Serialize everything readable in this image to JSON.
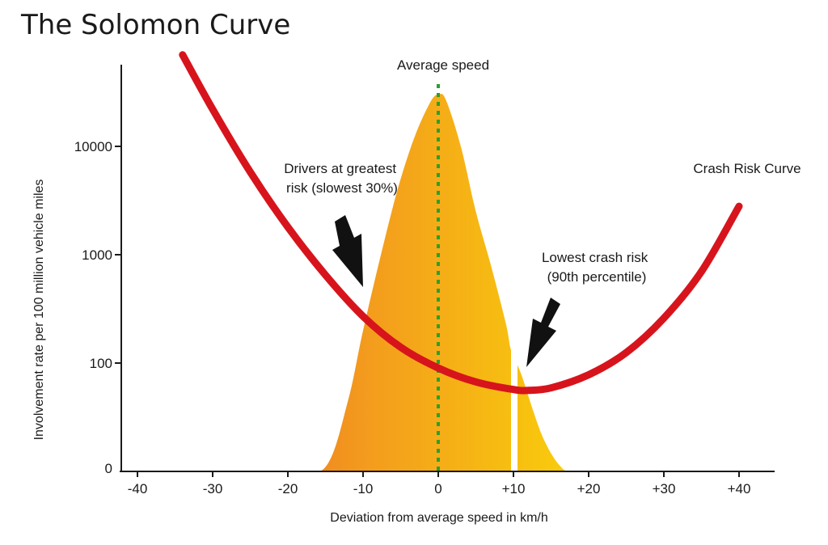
{
  "chart_data": {
    "type": "area",
    "title": "The Solomon Curve",
    "xlabel": "Deviation from average speed in km/h",
    "ylabel": "Involvement rate per 100 million vehicle miles",
    "xlim": [
      -45,
      45
    ],
    "x_ticks": [
      -40,
      -30,
      -20,
      -10,
      0,
      10,
      20,
      30,
      40
    ],
    "x_tick_labels": [
      "-40",
      "-30",
      "-20",
      "-10",
      "0",
      "+10",
      "+20",
      "+30",
      "+40"
    ],
    "y_scale": "log",
    "y_ticks": [
      100,
      1000,
      10000
    ],
    "y_tick_labels": [
      "100",
      "1000",
      "10000"
    ],
    "y_origin_label": "0",
    "series": [
      {
        "name": "Crash Risk Curve",
        "type": "line",
        "color": "#d7141c",
        "x": [
          -34,
          -30,
          -25,
          -20,
          -15,
          -10,
          -5,
          0,
          5,
          10,
          12,
          15,
          20,
          25,
          30,
          35,
          40
        ],
        "y": [
          70000,
          22000,
          5800,
          1800,
          650,
          270,
          140,
          90,
          67,
          57,
          56,
          59,
          78,
          125,
          260,
          700,
          2800
        ]
      },
      {
        "type": "area",
        "color": "#f5a623",
        "x": [
          -35,
          -25,
          -20,
          -15,
          -12,
          -10,
          -7,
          -5,
          -3,
          -1,
          0,
          1,
          3,
          5,
          7,
          9,
          9.7,
          11,
          14,
          17,
          20
        ],
        "y": [
          0.5,
          0.8,
          2.5,
          11,
          45,
          200,
          1500,
          5000,
          13000,
          26000,
          30000,
          27000,
          10000,
          2500,
          800,
          230,
          130,
          80,
          20,
          5,
          0.8
        ]
      }
    ],
    "annotations": [
      {
        "text": "Average speed",
        "x": 0
      },
      {
        "text": "Drivers at greatest risk (slowest 30%)",
        "lines": [
          "Drivers at greatest",
          "risk (slowest 30%)"
        ]
      },
      {
        "text": "Lowest crash risk (90th percentile)",
        "lines": [
          "Lowest crash risk",
          "(90th percentile)"
        ],
        "x": 10
      }
    ],
    "grid": false,
    "legend": "none"
  }
}
